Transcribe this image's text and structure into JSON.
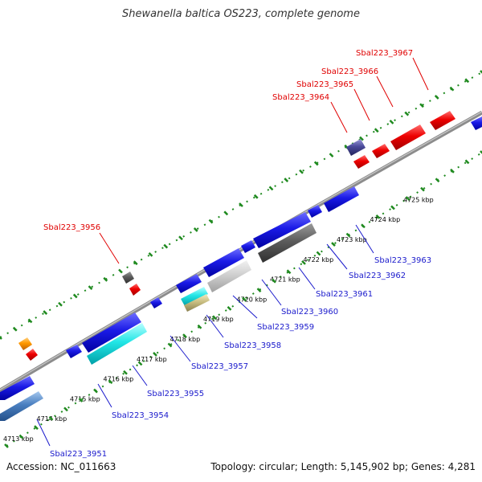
{
  "title": "Shewanella baltica OS223, complete genome",
  "footer": {
    "accession": "Accession: NC_011663",
    "summary": "Topology: circular; Length: 5,145,902 bp; Genes: 4,281"
  },
  "colors": {
    "backbone": "#8c8c8c",
    "ruler_dots": "#1f8a1f",
    "label_red": "#e00000",
    "label_blue": "#1a1acc",
    "leader_red": "#e00000",
    "leader_blue": "#1a1acc"
  },
  "ticks": [
    "4713 kbp",
    "4714 kbp",
    "4715 kbp",
    "4716 kbp",
    "4717 kbp",
    "4718 kbp",
    "4719 kbp",
    "4720 kbp",
    "4721 kbp",
    "4722 kbp",
    "4723 kbp",
    "4724 kbp",
    "4725 kbp"
  ],
  "upper_labels": [
    "Sbal223_3956",
    "Sbal223_3964",
    "Sbal223_3965",
    "Sbal223_3966",
    "Sbal223_3967"
  ],
  "lower_labels": [
    "Sbal223_3951",
    "Sbal223_3954",
    "Sbal223_3955",
    "Sbal223_3957",
    "Sbal223_3958",
    "Sbal223_3959",
    "Sbal223_3960",
    "Sbal223_3961",
    "Sbal223_3962",
    "Sbal223_3963"
  ]
}
